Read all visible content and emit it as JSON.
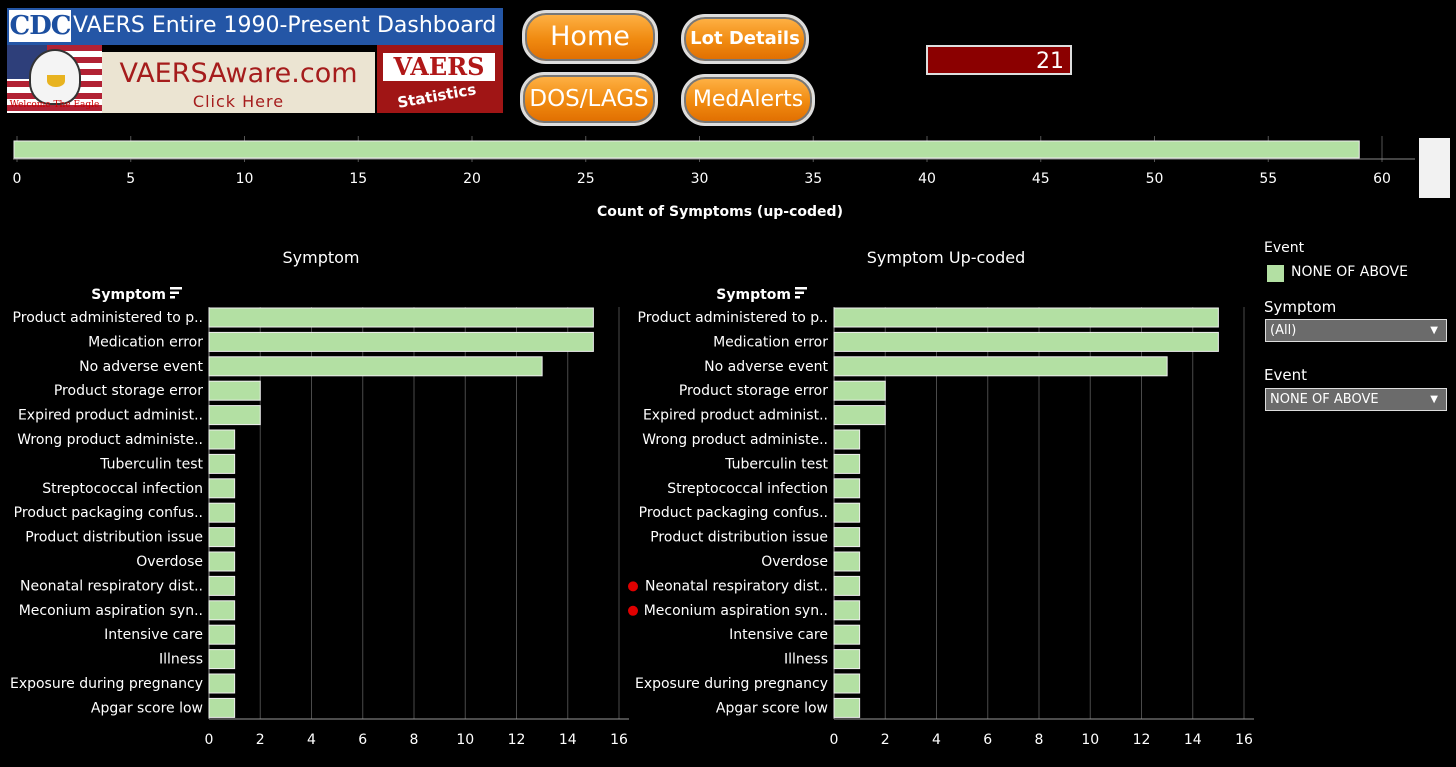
{
  "banner": {
    "cdc": "CDC",
    "title": "VAERS Entire 1990-Present Dashboard",
    "eagle_caption": "Welcome The Eagle",
    "vaersaware": "VAERSAware.com",
    "vaersaware_sub": "Click Here",
    "vaers_stats_title": "VAERS",
    "vaers_stats_sub": "Statistics"
  },
  "nav": {
    "home": "Home",
    "lot_details": "Lot Details",
    "dos_lags": "DOS/LAGS",
    "medalerts": "MedAlerts"
  },
  "count_value": "21",
  "legend": {
    "title": "Event",
    "item": "NONE OF ABOVE",
    "color": "#b3e0a3"
  },
  "filters": {
    "symptom_label": "Symptom",
    "symptom_value": "(All)",
    "event_label": "Event",
    "event_value": "NONE OF ABOVE"
  },
  "chart_data": [
    {
      "type": "bar",
      "orientation": "horizontal",
      "xlabel": "Count of Symptoms (up-coded)",
      "values": [
        59
      ],
      "xlim": [
        0,
        62
      ],
      "xticks": [
        0,
        5,
        10,
        15,
        20,
        25,
        30,
        35,
        40,
        45,
        50,
        55,
        60
      ],
      "color": "#b3e0a3"
    },
    {
      "type": "bar",
      "orientation": "horizontal",
      "title": "Symptom",
      "column_header": "Symptom",
      "categories": [
        "Product administered to p..",
        "Medication error",
        "No adverse event",
        "Product storage error",
        "Expired product administ..",
        "Wrong product administe..",
        "Tuberculin test",
        "Streptococcal infection",
        "Product packaging confus..",
        "Product distribution issue",
        "Overdose",
        "Neonatal respiratory dist..",
        "Meconium aspiration syn..",
        "Intensive care",
        "Illness",
        "Exposure during pregnancy",
        "Apgar score low"
      ],
      "values": [
        15,
        15,
        13,
        2,
        2,
        1,
        1,
        1,
        1,
        1,
        1,
        1,
        1,
        1,
        1,
        1,
        1
      ],
      "xlim": [
        0,
        16
      ],
      "xticks": [
        0,
        2,
        4,
        6,
        8,
        10,
        12,
        14,
        16
      ],
      "color": "#b3e0a3"
    },
    {
      "type": "bar",
      "orientation": "horizontal",
      "title": "Symptom Up-coded",
      "column_header": "Symptom",
      "categories": [
        "Product administered to p..",
        "Medication error",
        "No adverse event",
        "Product storage error",
        "Expired product administ..",
        "Wrong product administe..",
        "Tuberculin test",
        "Streptococcal infection",
        "Product packaging confus..",
        "Product distribution issue",
        "Overdose",
        "Neonatal respiratory dist..",
        "Meconium aspiration syn..",
        "Intensive care",
        "Illness",
        "Exposure during pregnancy",
        "Apgar score low"
      ],
      "values": [
        15,
        15,
        13,
        2,
        2,
        1,
        1,
        1,
        1,
        1,
        1,
        1,
        1,
        1,
        1,
        1,
        1
      ],
      "xlim": [
        0,
        16
      ],
      "xticks": [
        0,
        2,
        4,
        6,
        8,
        10,
        12,
        14,
        16
      ],
      "marked": [
        false,
        false,
        false,
        false,
        false,
        false,
        false,
        false,
        false,
        false,
        false,
        true,
        true,
        false,
        false,
        false,
        false
      ],
      "color": "#b3e0a3"
    }
  ]
}
